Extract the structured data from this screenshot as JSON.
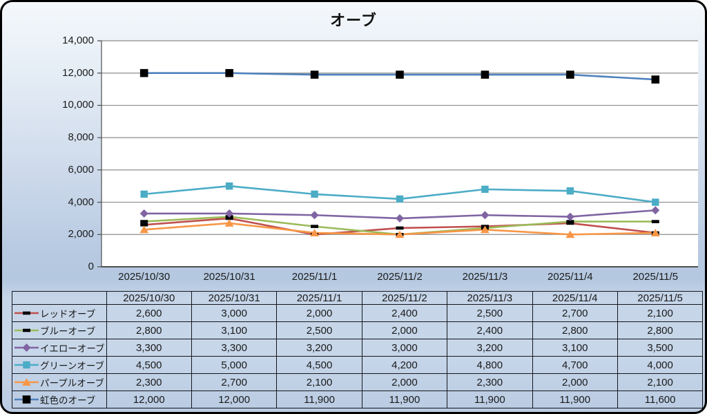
{
  "chart_data": {
    "type": "line",
    "title": "オーブ",
    "categories": [
      "2025/10/30",
      "2025/10/31",
      "2025/11/1",
      "2025/11/2",
      "2025/11/3",
      "2025/11/4",
      "2025/11/5"
    ],
    "series": [
      {
        "name": "レッドオーブ",
        "color": "#C0504D",
        "marker": "dash",
        "marker_color": "#000000",
        "values": [
          2600,
          3000,
          2000,
          2400,
          2500,
          2700,
          2100
        ]
      },
      {
        "name": "ブルーオーブ",
        "color": "#9BBB59",
        "marker": "dash",
        "marker_color": "#000000",
        "values": [
          2800,
          3100,
          2500,
          2000,
          2400,
          2800,
          2800
        ]
      },
      {
        "name": "イエローオーブ",
        "color": "#8064A2",
        "marker": "diamond",
        "marker_color": "#8064A2",
        "values": [
          3300,
          3300,
          3200,
          3000,
          3200,
          3100,
          3500
        ]
      },
      {
        "name": "グリーンオーブ",
        "color": "#4BACC6",
        "marker": "square",
        "marker_color": "#4BACC6",
        "values": [
          4500,
          5000,
          4500,
          4200,
          4800,
          4700,
          4000
        ]
      },
      {
        "name": "パープルオーブ",
        "color": "#F79646",
        "marker": "triangle",
        "marker_color": "#F79646",
        "values": [
          2300,
          2700,
          2100,
          2000,
          2300,
          2000,
          2100
        ]
      },
      {
        "name": "虹色のオーブ",
        "color": "#4F81BD",
        "marker": "bigsquare",
        "marker_color": "#000000",
        "values": [
          12000,
          12000,
          11900,
          11900,
          11900,
          11900,
          11600
        ]
      }
    ],
    "y_axis": {
      "min": 0,
      "max": 14000,
      "step": 2000,
      "tick_labels": [
        "0",
        "2,000",
        "4,000",
        "6,000",
        "8,000",
        "10,000",
        "12,000",
        "14,000"
      ]
    },
    "grid": true,
    "legend_position": "table-left",
    "style": {
      "plot_background": "#FFFFFF",
      "gridline_color": "#8C8C8C",
      "axis_color": "#4d4d4d",
      "frame_border_color": "#000000",
      "table_border_color": "#14161d"
    },
    "data_table": {
      "shown": true,
      "header_labels": [
        "2025/10/30",
        "2025/10/31",
        "2025/11/1",
        "2025/11/2",
        "2025/11/3",
        "2025/11/4",
        "2025/11/5"
      ],
      "cell_values": [
        [
          "2,600",
          "3,000",
          "2,000",
          "2,400",
          "2,500",
          "2,700",
          "2,100"
        ],
        [
          "2,800",
          "3,100",
          "2,500",
          "2,000",
          "2,400",
          "2,800",
          "2,800"
        ],
        [
          "3,300",
          "3,300",
          "3,200",
          "3,000",
          "3,200",
          "3,100",
          "3,500"
        ],
        [
          "4,500",
          "5,000",
          "4,500",
          "4,200",
          "4,800",
          "4,700",
          "4,000"
        ],
        [
          "2,300",
          "2,700",
          "2,100",
          "2,000",
          "2,300",
          "2,000",
          "2,100"
        ],
        [
          "12,000",
          "12,000",
          "11,900",
          "11,900",
          "11,900",
          "11,900",
          "11,600"
        ]
      ]
    }
  }
}
